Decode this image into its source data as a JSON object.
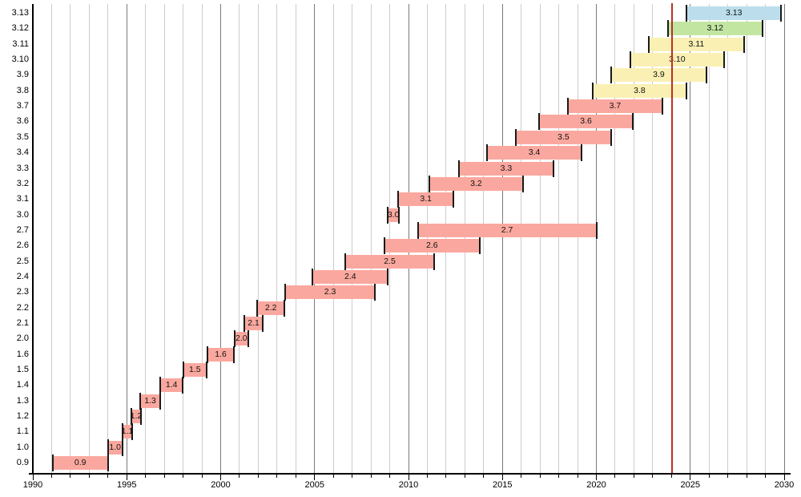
{
  "chart_data": {
    "type": "gantt",
    "description_of_pixels": "Timeline chart of Python release versions: one horizontal bar per version from release year to end-of-support year, red vertical line marks early 2024",
    "x_axis": {
      "min": 1990,
      "max": 2030,
      "major_tick_labels": [
        "1990",
        "1995",
        "2000",
        "2005",
        "2010",
        "2015",
        "2020",
        "2025",
        "2030"
      ],
      "major_tick_years": [
        1990,
        1995,
        2000,
        2005,
        2010,
        2015,
        2020,
        2025,
        2030
      ],
      "minor_step_years": 1,
      "grid": true
    },
    "y_axis": {
      "labels_top_to_bottom": [
        "3.13",
        "3.12",
        "3.11",
        "3.10",
        "3.9",
        "3.8",
        "3.7",
        "3.6",
        "3.5",
        "3.4",
        "3.3",
        "3.2",
        "3.1",
        "3.0",
        "2.7",
        "2.6",
        "2.5",
        "2.4",
        "2.3",
        "2.2",
        "2.1",
        "2.0",
        "1.6",
        "1.5",
        "1.4",
        "1.3",
        "1.2",
        "1.1",
        "1.0",
        "0.9"
      ]
    },
    "bars": [
      {
        "label": "3.13",
        "start": 2024.8,
        "end": 2029.85,
        "color": "blue"
      },
      {
        "label": "3.12",
        "start": 2023.8,
        "end": 2028.84,
        "color": "green"
      },
      {
        "label": "3.11",
        "start": 2022.8,
        "end": 2027.85,
        "color": "yellow"
      },
      {
        "label": "3.10",
        "start": 2021.8,
        "end": 2026.8,
        "color": "yellow"
      },
      {
        "label": "3.9",
        "start": 2020.8,
        "end": 2025.85,
        "color": "yellow"
      },
      {
        "label": "3.8",
        "start": 2019.8,
        "end": 2024.8,
        "color": "yellow"
      },
      {
        "label": "3.7",
        "start": 2018.5,
        "end": 2023.5,
        "color": "pink"
      },
      {
        "label": "3.6",
        "start": 2016.95,
        "end": 2021.95,
        "color": "pink"
      },
      {
        "label": "3.5",
        "start": 2015.7,
        "end": 2020.8,
        "color": "pink"
      },
      {
        "label": "3.4",
        "start": 2014.2,
        "end": 2019.2,
        "color": "pink"
      },
      {
        "label": "3.3",
        "start": 2012.7,
        "end": 2017.7,
        "color": "pink"
      },
      {
        "label": "3.2",
        "start": 2011.1,
        "end": 2016.1,
        "color": "pink"
      },
      {
        "label": "3.1",
        "start": 2009.45,
        "end": 2012.4,
        "color": "pink"
      },
      {
        "label": "3.0",
        "start": 2008.9,
        "end": 2009.5,
        "color": "pink"
      },
      {
        "label": "2.7",
        "start": 2010.5,
        "end": 2020.0,
        "color": "pink"
      },
      {
        "label": "2.6",
        "start": 2008.7,
        "end": 2013.8,
        "color": "pink"
      },
      {
        "label": "2.5",
        "start": 2006.65,
        "end": 2011.35,
        "color": "pink"
      },
      {
        "label": "2.4",
        "start": 2004.9,
        "end": 2008.9,
        "color": "pink"
      },
      {
        "label": "2.3",
        "start": 2003.45,
        "end": 2008.2,
        "color": "pink"
      },
      {
        "label": "2.2",
        "start": 2001.95,
        "end": 2003.4,
        "color": "pink"
      },
      {
        "label": "2.1",
        "start": 2001.25,
        "end": 2002.25,
        "color": "pink"
      },
      {
        "label": "2.0",
        "start": 2000.75,
        "end": 2001.45,
        "color": "pink"
      },
      {
        "label": "1.6",
        "start": 1999.3,
        "end": 2000.7,
        "color": "pink"
      },
      {
        "label": "1.5",
        "start": 1998.0,
        "end": 1999.25,
        "color": "pink"
      },
      {
        "label": "1.4",
        "start": 1996.8,
        "end": 1997.97,
        "color": "pink"
      },
      {
        "label": "1.3",
        "start": 1995.7,
        "end": 1996.8,
        "color": "pink"
      },
      {
        "label": "1.2",
        "start": 1995.25,
        "end": 1995.75,
        "color": "pink"
      },
      {
        "label": "1.1",
        "start": 1994.76,
        "end": 1995.3,
        "color": "pink"
      },
      {
        "label": "1.0",
        "start": 1994.0,
        "end": 1994.76,
        "color": "pink"
      },
      {
        "label": "0.9",
        "start": 1991.05,
        "end": 1994.0,
        "color": "pink"
      }
    ],
    "today_line": {
      "year": 2024.03,
      "color": "#bb2f26"
    },
    "bar_fill_colors": {
      "pink": "#faa89f",
      "yellow": "#faf0b4",
      "green": "#c2e6a2",
      "blue": "#bcdeec"
    },
    "bar_cap_color": "#1a1a1a",
    "grid_colors": {
      "minor": "#cccccc",
      "major": "#7a7a7a",
      "axis": "#000000"
    },
    "legend": "none"
  }
}
